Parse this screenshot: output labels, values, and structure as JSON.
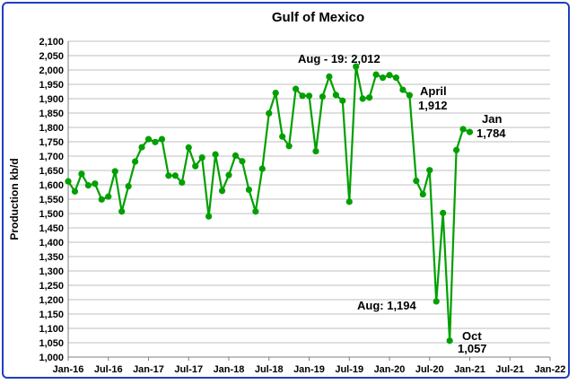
{
  "chart_data": {
    "type": "line",
    "title": "Gulf of Mexico",
    "xlabel": "",
    "ylabel": "Production kb/d",
    "ylim": [
      1000,
      2100
    ],
    "y_step": 50,
    "x_ticks": [
      "Jan-16",
      "Jul-16",
      "Jan-17",
      "Jul-17",
      "Jan-18",
      "Jul-18",
      "Jan-19",
      "Jul-19",
      "Jan-20",
      "Jul-20",
      "Jan-21",
      "Jul-21",
      "Jan-22"
    ],
    "x_months_total": 72,
    "grid": true,
    "legend": "none",
    "line_color": "#00a000",
    "series": [
      {
        "values": [
          1612,
          1577,
          1638,
          1598,
          1604,
          1549,
          1559,
          1647,
          1507,
          1595,
          1681,
          1731,
          1759,
          1749,
          1759,
          1632,
          1632,
          1608,
          1730,
          1665,
          1695,
          1490,
          1706,
          1579,
          1634,
          1702,
          1682,
          1583,
          1507,
          1656,
          1849,
          1920,
          1768,
          1735,
          1934,
          1910,
          1910,
          1717,
          1907,
          1977,
          1913,
          1893,
          1541,
          2012,
          1900,
          1904,
          1984,
          1973,
          1982,
          1973,
          1931,
          1912,
          1614,
          1567,
          1651,
          1194,
          1502,
          1057,
          1721,
          1794,
          1784
        ]
      }
    ],
    "annotations": [
      {
        "line1": "Aug - 19: 2,012",
        "line2": ""
      },
      {
        "line1": "April",
        "line2": "1,912"
      },
      {
        "line1": "Jan",
        "line2": "1,784"
      },
      {
        "line1": "Aug: 1,194",
        "line2": ""
      },
      {
        "line1": "Oct",
        "line2": "1,057"
      }
    ]
  }
}
